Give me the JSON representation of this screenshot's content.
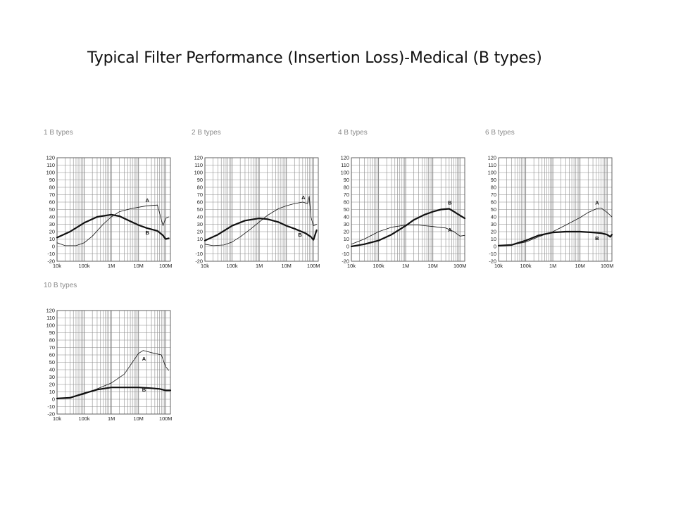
{
  "title": "Typical Filter Performance (Insertion Loss)-Medical (B types)",
  "colors": {
    "grid": "#8c8c8c",
    "line": "#111111",
    "panel_title": "#8a8a8a"
  },
  "chart_data": [
    {
      "type": "line",
      "title": "1 B types",
      "xscale": "log",
      "xlim": [
        10000,
        150000000
      ],
      "ylim": [
        -20,
        120
      ],
      "x_tick_labels": [
        "10k",
        "100k",
        "1M",
        "10M",
        "100M"
      ],
      "y_tick_labels": [
        "120",
        "110",
        "100",
        "90",
        "80",
        "70",
        "60",
        "50",
        "40",
        "30",
        "20",
        "10",
        "0",
        "-10",
        "-20"
      ],
      "series": [
        {
          "name": "A",
          "line": "thin",
          "x": [
            10000,
            20000,
            50000,
            100000,
            200000,
            500000,
            1000000,
            2000000,
            5000000,
            10000000,
            20000000,
            50000000,
            60000000,
            80000000,
            100000000,
            130000000
          ],
          "y": [
            5,
            1,
            1,
            5,
            14,
            30,
            40,
            47,
            51,
            53,
            55,
            56,
            45,
            28,
            38,
            40
          ]
        },
        {
          "name": "B",
          "line": "thick",
          "x": [
            10000,
            30000,
            100000,
            300000,
            1000000,
            2000000,
            5000000,
            10000000,
            20000000,
            50000000,
            80000000,
            100000000,
            130000000
          ],
          "y": [
            12,
            20,
            32,
            40,
            43,
            41,
            34,
            29,
            25,
            21,
            15,
            10,
            11
          ]
        }
      ]
    },
    {
      "type": "line",
      "title": "2 B types",
      "xscale": "log",
      "xlim": [
        10000,
        150000000
      ],
      "ylim": [
        -20,
        120
      ],
      "x_tick_labels": [
        "10k",
        "100k",
        "1M",
        "10M",
        "100M"
      ],
      "y_tick_labels": [
        "120",
        "110",
        "100",
        "90",
        "80",
        "70",
        "60",
        "50",
        "40",
        "30",
        "20",
        "10",
        "0",
        "-10",
        "-20"
      ],
      "series": [
        {
          "name": "A",
          "line": "thin",
          "x": [
            10000,
            20000,
            50000,
            100000,
            200000,
            500000,
            1000000,
            2000000,
            5000000,
            10000000,
            20000000,
            40000000,
            60000000,
            70000000,
            80000000,
            100000000,
            130000000
          ],
          "y": [
            3,
            1,
            2,
            6,
            13,
            24,
            33,
            42,
            51,
            55,
            58,
            60,
            58,
            68,
            40,
            28,
            30
          ]
        },
        {
          "name": "B",
          "line": "thick",
          "x": [
            10000,
            30000,
            100000,
            300000,
            1000000,
            2000000,
            5000000,
            10000000,
            20000000,
            50000000,
            80000000,
            100000000,
            130000000
          ],
          "y": [
            8,
            16,
            28,
            35,
            38,
            37,
            33,
            28,
            24,
            18,
            13,
            9,
            22
          ]
        }
      ]
    },
    {
      "type": "line",
      "title": "4 B types",
      "xscale": "log",
      "xlim": [
        10000,
        150000000
      ],
      "ylim": [
        -20,
        120
      ],
      "x_tick_labels": [
        "10k",
        "100k",
        "1M",
        "10M",
        "100M"
      ],
      "y_tick_labels": [
        "120",
        "110",
        "100",
        "90",
        "80",
        "70",
        "60",
        "50",
        "40",
        "30",
        "20",
        "10",
        "0",
        "-10",
        "-20"
      ],
      "series": [
        {
          "name": "A",
          "line": "thin",
          "x": [
            10000,
            30000,
            100000,
            300000,
            1000000,
            3000000,
            10000000,
            30000000,
            60000000,
            100000000,
            150000000
          ],
          "y": [
            3,
            10,
            20,
            26,
            29,
            29,
            27,
            25,
            20,
            14,
            15
          ]
        },
        {
          "name": "B",
          "line": "thick",
          "x": [
            10000,
            30000,
            100000,
            300000,
            1000000,
            2000000,
            5000000,
            10000000,
            20000000,
            40000000,
            60000000,
            100000000,
            150000000
          ],
          "y": [
            0,
            3,
            8,
            16,
            28,
            36,
            43,
            47,
            50,
            51,
            47,
            42,
            38
          ]
        }
      ]
    },
    {
      "type": "line",
      "title": "6 B types",
      "xscale": "log",
      "xlim": [
        10000,
        150000000
      ],
      "ylim": [
        -20,
        120
      ],
      "x_tick_labels": [
        "10k",
        "100k",
        "1M",
        "10M",
        "100M"
      ],
      "y_tick_labels": [
        "120",
        "110",
        "100",
        "90",
        "80",
        "70",
        "60",
        "50",
        "40",
        "30",
        "20",
        "10",
        "0",
        "-10",
        "-20"
      ],
      "series": [
        {
          "name": "A",
          "line": "thin",
          "x": [
            10000,
            30000,
            100000,
            300000,
            1000000,
            3000000,
            10000000,
            20000000,
            40000000,
            60000000,
            100000000,
            150000000
          ],
          "y": [
            1,
            2,
            6,
            13,
            20,
            29,
            39,
            46,
            51,
            52,
            46,
            40
          ]
        },
        {
          "name": "B",
          "line": "thick",
          "x": [
            10000,
            30000,
            100000,
            300000,
            1000000,
            3000000,
            10000000,
            30000000,
            60000000,
            100000000,
            130000000,
            150000000
          ],
          "y": [
            1,
            2,
            8,
            15,
            19,
            20,
            20,
            19,
            18,
            16,
            13,
            16
          ]
        }
      ]
    },
    {
      "type": "line",
      "title": "10 B types",
      "xscale": "log",
      "xlim": [
        10000,
        150000000
      ],
      "ylim": [
        -20,
        120
      ],
      "x_tick_labels": [
        "10k",
        "100k",
        "1M",
        "10M",
        "100M"
      ],
      "y_tick_labels": [
        "120",
        "110",
        "100",
        "90",
        "80",
        "70",
        "60",
        "50",
        "40",
        "30",
        "20",
        "10",
        "0",
        "-10",
        "-20"
      ],
      "series": [
        {
          "name": "A",
          "line": "thin",
          "x": [
            10000,
            30000,
            100000,
            300000,
            1000000,
            3000000,
            10000000,
            15000000,
            30000000,
            70000000,
            100000000,
            130000000
          ],
          "y": [
            1,
            2,
            7,
            14,
            22,
            34,
            62,
            66,
            63,
            60,
            44,
            39
          ]
        },
        {
          "name": "B",
          "line": "thick",
          "x": [
            10000,
            30000,
            100000,
            300000,
            1000000,
            3000000,
            10000000,
            30000000,
            60000000,
            100000000,
            150000000
          ],
          "y": [
            1,
            2,
            8,
            13,
            16,
            16,
            16,
            15,
            14,
            12,
            12
          ]
        }
      ]
    }
  ]
}
